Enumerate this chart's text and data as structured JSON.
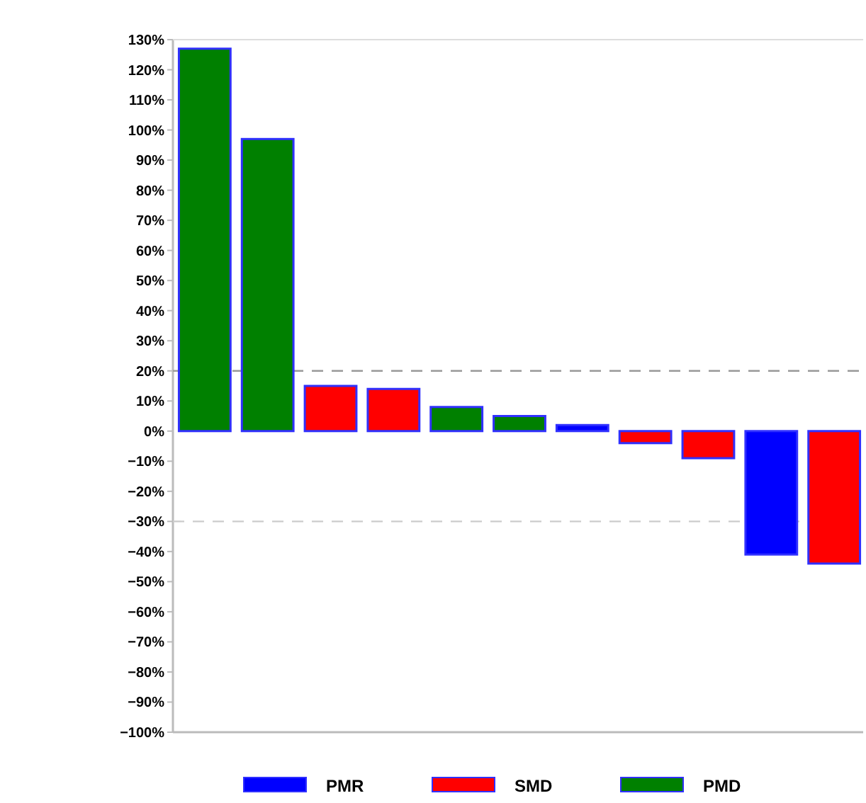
{
  "chart_data": {
    "type": "bar",
    "categories": [
      null,
      null,
      null,
      null,
      null,
      null,
      null,
      null,
      null,
      null,
      null
    ],
    "series": [
      {
        "name": "PMR",
        "color": "#0000ff",
        "values": [
          null,
          null,
          null,
          null,
          null,
          null,
          2,
          null,
          null,
          -41,
          null
        ]
      },
      {
        "name": "SMD",
        "color": "#ff0000",
        "values": [
          null,
          null,
          15,
          14,
          null,
          null,
          null,
          -4,
          -9,
          null,
          -44
        ]
      },
      {
        "name": "PMD",
        "color": "#008000",
        "values": [
          127,
          97,
          null,
          null,
          8,
          5,
          null,
          null,
          null,
          null,
          null
        ]
      }
    ],
    "ylim": [
      -100,
      130
    ],
    "yticks": [
      {
        "value": -100,
        "label": "−100%"
      },
      {
        "value": -90,
        "label": "−90%"
      },
      {
        "value": -80,
        "label": "−80%"
      },
      {
        "value": -70,
        "label": "−70%"
      },
      {
        "value": -60,
        "label": "−60%"
      },
      {
        "value": -50,
        "label": "−50%"
      },
      {
        "value": -40,
        "label": "−40%"
      },
      {
        "value": -30,
        "label": "−30%"
      },
      {
        "value": -20,
        "label": "−20%"
      },
      {
        "value": -10,
        "label": "−10%"
      },
      {
        "value": 0,
        "label": "0%"
      },
      {
        "value": 10,
        "label": "10%"
      },
      {
        "value": 20,
        "label": "20%"
      },
      {
        "value": 30,
        "label": "30%"
      },
      {
        "value": 40,
        "label": "40%"
      },
      {
        "value": 50,
        "label": "50%"
      },
      {
        "value": 60,
        "label": "60%"
      },
      {
        "value": 70,
        "label": "70%"
      },
      {
        "value": 80,
        "label": "80%"
      },
      {
        "value": 90,
        "label": "90%"
      },
      {
        "value": 100,
        "label": "100%"
      },
      {
        "value": 110,
        "label": "110%"
      },
      {
        "value": 120,
        "label": "120%"
      },
      {
        "value": 130,
        "label": "130%"
      }
    ],
    "ref_lines": [
      {
        "axis": "y",
        "value": 20,
        "color": "#999999",
        "line_style": "dashed"
      },
      {
        "axis": "y",
        "value": -30,
        "color": "#cccccc",
        "line_style": "dashed"
      }
    ],
    "legend": "bottom",
    "grid": false
  }
}
